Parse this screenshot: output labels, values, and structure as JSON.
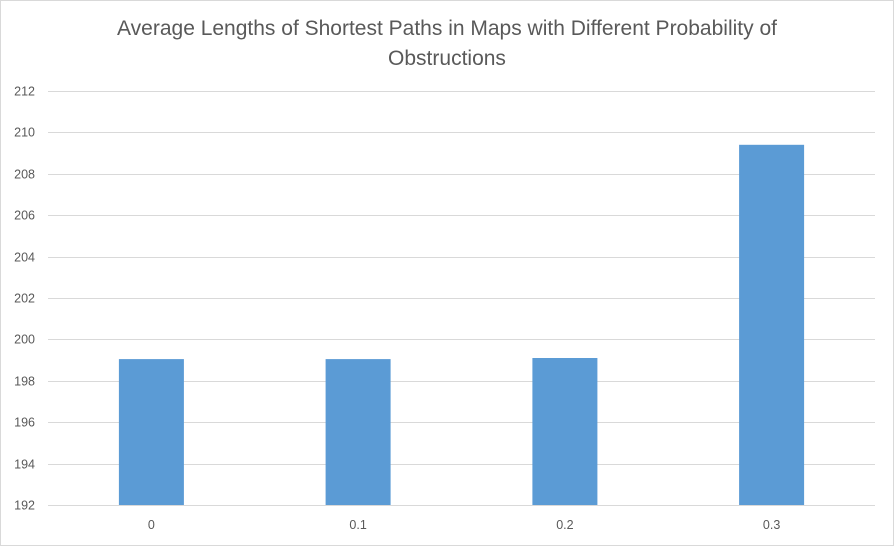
{
  "chart_data": {
    "type": "bar",
    "title": "Average Lengths of Shortest Paths in Maps with Different Probability of Obstructions",
    "categories": [
      "0",
      "0.1",
      "0.2",
      "0.3"
    ],
    "values": [
      199.05,
      199.05,
      199.1,
      209.4
    ],
    "xlabel": "",
    "ylabel": "",
    "ylim": [
      192,
      212
    ],
    "yticks": [
      "192",
      "194",
      "196",
      "198",
      "200",
      "202",
      "204",
      "206",
      "208",
      "210",
      "212"
    ],
    "grid": true,
    "legend": "none",
    "bar_color": "#5b9bd5",
    "grid_color": "#d9d9d9"
  }
}
